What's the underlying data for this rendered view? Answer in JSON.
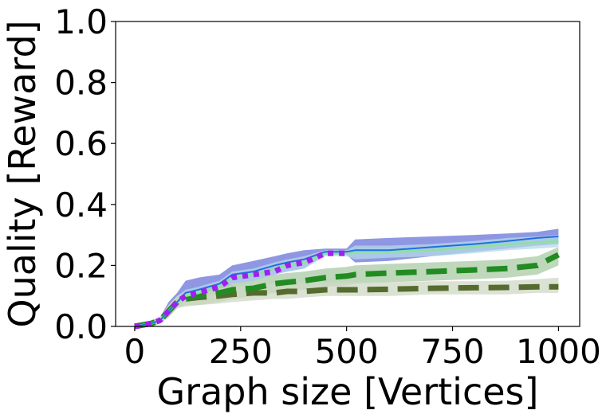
{
  "chart_data": {
    "type": "line",
    "title": "",
    "xlabel": "Graph size [Vertices]",
    "ylabel": "Quality [Reward]",
    "xlim": [
      -45,
      1050
    ],
    "ylim": [
      0.0,
      1.0
    ],
    "xticks": [
      0,
      250,
      500,
      750,
      1000
    ],
    "xtick_labels": [
      "0",
      "250",
      "500",
      "750",
      "1000"
    ],
    "yticks": [
      0.0,
      0.2,
      0.4,
      0.6,
      0.8,
      1.0
    ],
    "ytick_labels": [
      "0.0",
      "0.2",
      "0.4",
      "0.6",
      "0.8",
      "1.0"
    ],
    "grid": false,
    "legend": "none",
    "series": [
      {
        "color": "#1f6fe0",
        "band_color": "#6a74d8",
        "style": "solid",
        "width": 2,
        "x": [
          0,
          20,
          40,
          60,
          80,
          100,
          120,
          150,
          200,
          230,
          280,
          330,
          360,
          400,
          450,
          500,
          520,
          600,
          700,
          800,
          880,
          950,
          1000
        ],
        "y": [
          0.0,
          0.005,
          0.01,
          0.02,
          0.05,
          0.08,
          0.11,
          0.12,
          0.14,
          0.17,
          0.18,
          0.2,
          0.21,
          0.22,
          0.245,
          0.245,
          0.25,
          0.25,
          0.26,
          0.27,
          0.28,
          0.29,
          0.295
        ],
        "lower": [
          0.0,
          0.0,
          0.0,
          0.01,
          0.03,
          0.06,
          0.09,
          0.1,
          0.11,
          0.14,
          0.15,
          0.17,
          0.18,
          0.19,
          0.235,
          0.235,
          0.21,
          0.215,
          0.23,
          0.245,
          0.255,
          0.265,
          0.27
        ],
        "upper": [
          0.0,
          0.01,
          0.02,
          0.03,
          0.08,
          0.11,
          0.15,
          0.16,
          0.17,
          0.2,
          0.215,
          0.23,
          0.24,
          0.25,
          0.255,
          0.255,
          0.285,
          0.29,
          0.295,
          0.3,
          0.305,
          0.31,
          0.32
        ]
      },
      {
        "color": "#8fe0a0",
        "band_color": "#b5d8ea",
        "style": "solid",
        "width": 3,
        "x": [
          0,
          20,
          40,
          60,
          80,
          100,
          120,
          150,
          200,
          230,
          280,
          330,
          360,
          400,
          450,
          500,
          520,
          600,
          700,
          800,
          880,
          950,
          1000
        ],
        "y": [
          0.0,
          0.005,
          0.01,
          0.02,
          0.05,
          0.08,
          0.1,
          0.11,
          0.13,
          0.16,
          0.17,
          0.19,
          0.2,
          0.21,
          0.24,
          0.24,
          0.245,
          0.245,
          0.25,
          0.26,
          0.27,
          0.275,
          0.28
        ],
        "lower": [
          0.0,
          0.0,
          0.0,
          0.01,
          0.03,
          0.06,
          0.08,
          0.09,
          0.11,
          0.14,
          0.15,
          0.17,
          0.18,
          0.19,
          0.23,
          0.23,
          0.22,
          0.225,
          0.23,
          0.24,
          0.25,
          0.255,
          0.26
        ],
        "upper": [
          0.0,
          0.01,
          0.02,
          0.03,
          0.07,
          0.1,
          0.12,
          0.13,
          0.15,
          0.18,
          0.19,
          0.21,
          0.22,
          0.23,
          0.25,
          0.25,
          0.265,
          0.265,
          0.27,
          0.28,
          0.29,
          0.295,
          0.3
        ]
      },
      {
        "color": "#228b22",
        "band_color": "#a9c9a4",
        "style": "dashed",
        "width": 7,
        "x": [
          0,
          20,
          40,
          60,
          80,
          100,
          120,
          150,
          200,
          230,
          280,
          330,
          360,
          400,
          450,
          500,
          520,
          600,
          700,
          800,
          880,
          950,
          1000
        ],
        "y": [
          0.0,
          0.005,
          0.01,
          0.02,
          0.05,
          0.08,
          0.09,
          0.1,
          0.11,
          0.12,
          0.125,
          0.14,
          0.145,
          0.15,
          0.16,
          0.165,
          0.17,
          0.175,
          0.18,
          0.185,
          0.19,
          0.2,
          0.235
        ],
        "lower": [
          0.0,
          0.0,
          0.0,
          0.01,
          0.03,
          0.06,
          0.07,
          0.07,
          0.08,
          0.09,
          0.1,
          0.11,
          0.12,
          0.12,
          0.13,
          0.135,
          0.14,
          0.145,
          0.15,
          0.155,
          0.16,
          0.17,
          0.2
        ],
        "upper": [
          0.0,
          0.01,
          0.02,
          0.03,
          0.07,
          0.1,
          0.11,
          0.12,
          0.13,
          0.14,
          0.15,
          0.17,
          0.175,
          0.18,
          0.19,
          0.195,
          0.2,
          0.205,
          0.21,
          0.215,
          0.22,
          0.23,
          0.26
        ]
      },
      {
        "color": "#556b2f",
        "band_color": "#cfd8c4",
        "style": "dashed",
        "width": 7,
        "x": [
          0,
          20,
          40,
          60,
          80,
          100,
          120,
          150,
          200,
          230,
          280,
          330,
          360,
          400,
          450,
          500,
          520,
          600,
          700,
          800,
          880,
          950,
          1000
        ],
        "y": [
          0.0,
          0.005,
          0.01,
          0.02,
          0.05,
          0.08,
          0.09,
          0.095,
          0.1,
          0.105,
          0.11,
          0.11,
          0.115,
          0.115,
          0.12,
          0.12,
          0.12,
          0.122,
          0.125,
          0.127,
          0.128,
          0.13,
          0.13
        ],
        "lower": [
          0.0,
          0.0,
          0.0,
          0.01,
          0.03,
          0.06,
          0.065,
          0.07,
          0.075,
          0.08,
          0.085,
          0.09,
          0.09,
          0.095,
          0.1,
          0.1,
          0.1,
          0.1,
          0.105,
          0.105,
          0.105,
          0.11,
          0.11
        ],
        "upper": [
          0.0,
          0.01,
          0.02,
          0.03,
          0.07,
          0.1,
          0.11,
          0.12,
          0.125,
          0.13,
          0.135,
          0.14,
          0.145,
          0.145,
          0.145,
          0.145,
          0.145,
          0.145,
          0.148,
          0.148,
          0.15,
          0.155,
          0.16
        ]
      },
      {
        "color": "#a020f0",
        "band_color": "",
        "style": "dotted",
        "width": 7,
        "x": [
          0,
          20,
          40,
          60,
          80,
          100,
          120,
          150,
          200,
          230,
          280,
          330,
          360,
          400,
          450,
          500
        ],
        "y": [
          0.0,
          0.005,
          0.01,
          0.02,
          0.05,
          0.08,
          0.1,
          0.11,
          0.13,
          0.16,
          0.17,
          0.18,
          0.2,
          0.21,
          0.24,
          0.24
        ]
      }
    ]
  }
}
